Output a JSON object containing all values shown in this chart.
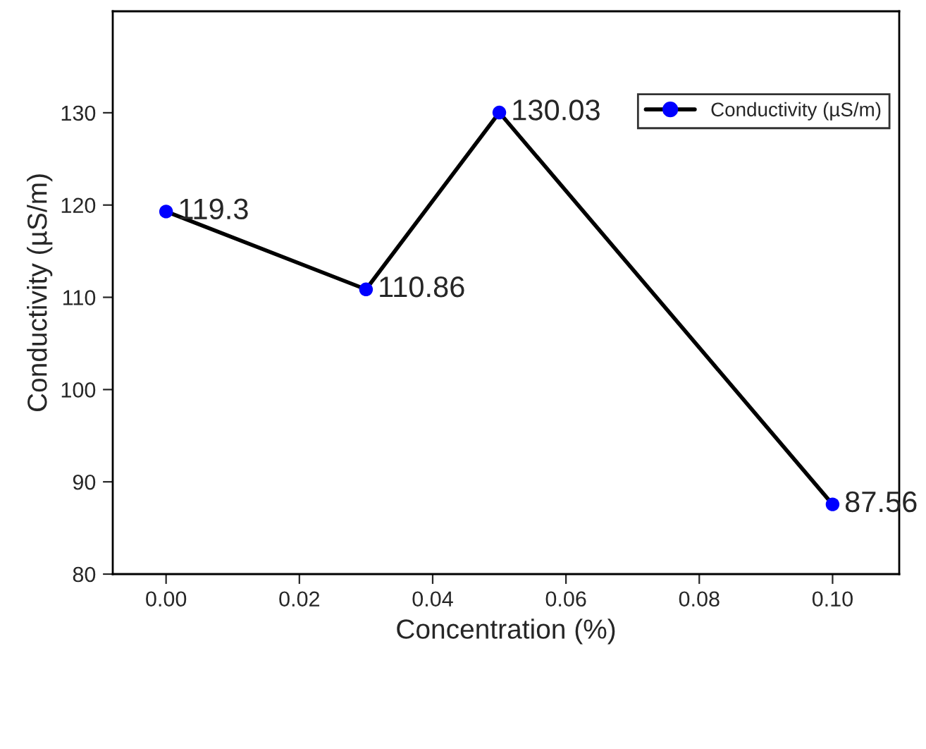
{
  "chart_data": {
    "type": "line",
    "xlabel": "Concentration (%)",
    "ylabel": "Conductivity (µS/m)",
    "x": [
      0.0,
      0.03,
      0.05,
      0.1
    ],
    "series": [
      {
        "name": "Conductivity (µS/m)",
        "color": "#000000",
        "colors": [
          "#0000ff",
          "#0000ff",
          "#0000ff",
          "#0000ff"
        ],
        "values": [
          119.3,
          110.86,
          130.03,
          87.56
        ]
      }
    ],
    "data_labels": true,
    "xlim": [
      -0.008,
      0.11
    ],
    "xticks": [
      {
        "value": 0.0,
        "label": "0.00"
      },
      {
        "value": 0.02,
        "label": "0.02"
      },
      {
        "value": 0.04,
        "label": "0.04"
      },
      {
        "value": 0.06,
        "label": "0.06"
      },
      {
        "value": 0.08,
        "label": "0.08"
      },
      {
        "value": 0.1,
        "label": "0.10"
      }
    ],
    "ylim": [
      80,
      141
    ],
    "yticks": [
      80,
      90,
      100,
      110,
      120,
      130
    ],
    "marker": "circle",
    "line_style": "solid",
    "legend": "top right",
    "grid": false
  }
}
